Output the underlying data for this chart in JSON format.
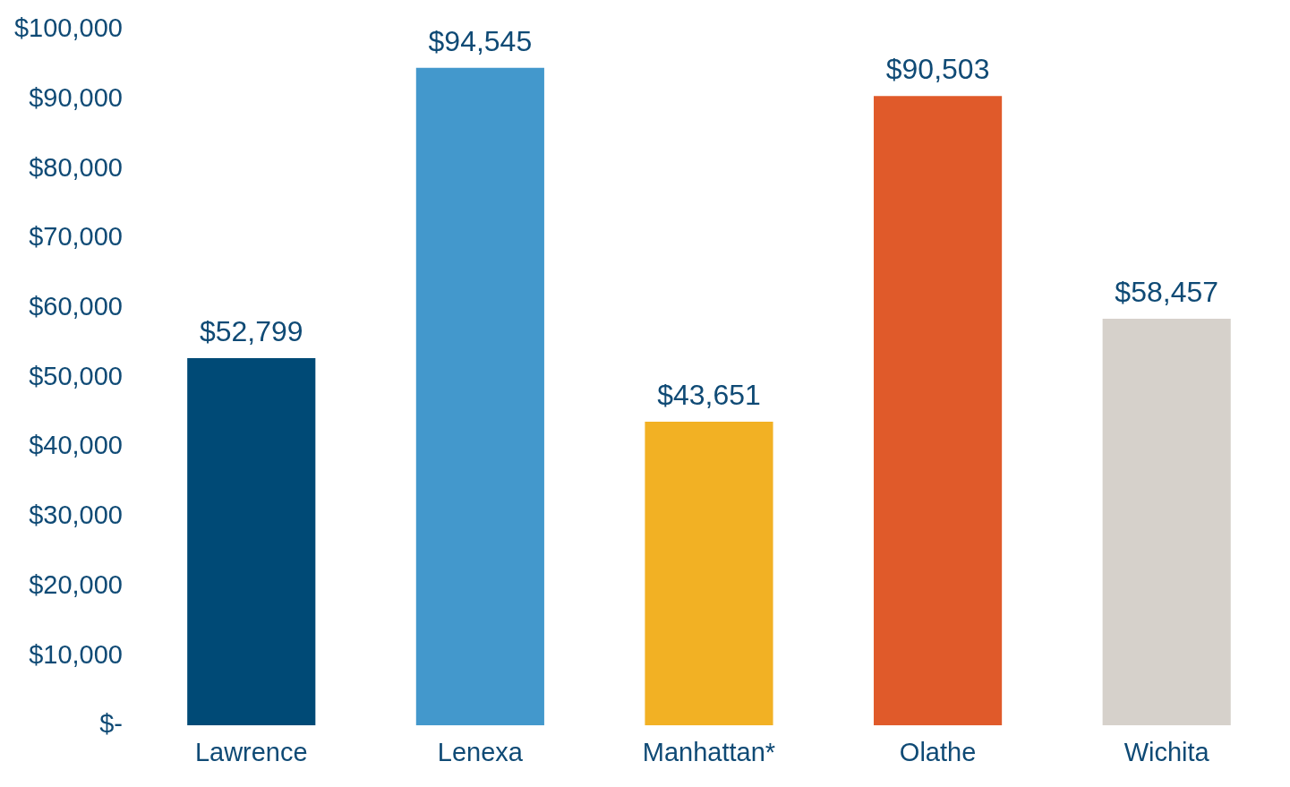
{
  "chart_data": {
    "type": "bar",
    "categories": [
      "Lawrence",
      "Lenexa",
      "Manhattan*",
      "Olathe",
      "Wichita"
    ],
    "values": [
      52799,
      94545,
      43651,
      90503,
      58457
    ],
    "colors": [
      "#004a76",
      "#4398cc",
      "#f2b124",
      "#e05a2a",
      "#d6d1cb"
    ],
    "value_labels": [
      "$52,799",
      "$94,545",
      "$43,651",
      "$90,503",
      "$58,457"
    ],
    "ylim": [
      0,
      100000
    ],
    "yticks": [
      {
        "value": 0,
        "label": "$-"
      },
      {
        "value": 10000,
        "label": "$10,000"
      },
      {
        "value": 20000,
        "label": "$20,000"
      },
      {
        "value": 30000,
        "label": "$30,000"
      },
      {
        "value": 40000,
        "label": "$40,000"
      },
      {
        "value": 50000,
        "label": "$50,000"
      },
      {
        "value": 60000,
        "label": "$60,000"
      },
      {
        "value": 70000,
        "label": "$70,000"
      },
      {
        "value": 80000,
        "label": "$80,000"
      },
      {
        "value": 90000,
        "label": "$90,000"
      },
      {
        "value": 100000,
        "label": "$100,000"
      }
    ],
    "grid": false,
    "legend": false
  }
}
